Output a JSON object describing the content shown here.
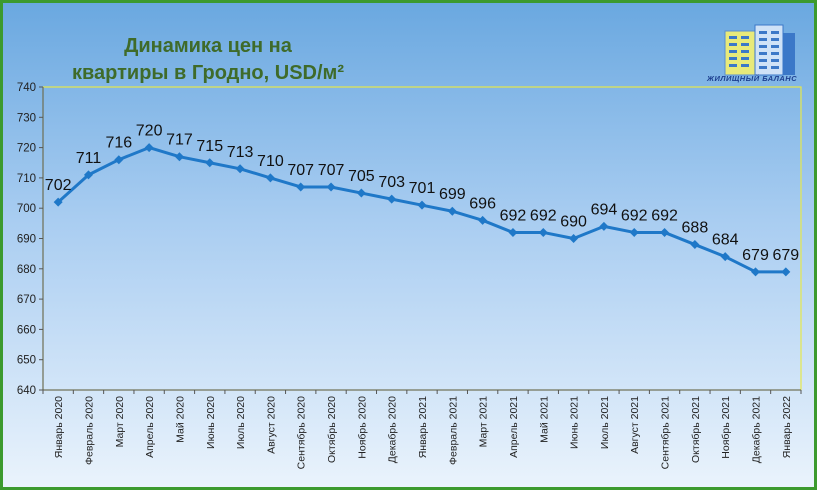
{
  "title_line1": "Динамика цен на",
  "title_line2": "квартиры в Гродно, USD/м²",
  "logo_text": "ЖИЛИЩНЫЙ БАЛАНС",
  "colors": {
    "line": "#1f78c8",
    "title": "#3f6b2a",
    "border": "#3c9a2e",
    "plot_border": "#e6e84a"
  },
  "chart_data": {
    "type": "line",
    "title": "Динамика цен на квартиры в Гродно, USD/м²",
    "xlabel": "",
    "ylabel": "",
    "ylim": [
      640,
      740
    ],
    "ytick_step": 10,
    "grid": false,
    "legend": "none",
    "categories": [
      "Январь 2020",
      "Февраль 2020",
      "Март 2020",
      "Апрель 2020",
      "Май 2020",
      "Июнь 2020",
      "Июль 2020",
      "Август 2020",
      "Сентябрь 2020",
      "Октябрь 2020",
      "Ноябрь 2020",
      "Декабрь 2020",
      "Январь 2021",
      "Февраль 2021",
      "Март 2021",
      "Апрель 2021",
      "Май 2021",
      "Июнь 2021",
      "Июль 2021",
      "Август 2021",
      "Сентябрь 2021",
      "Октябрь 2021",
      "Ноябрь 2021",
      "Декабрь 2021",
      "Январь 2022"
    ],
    "series": [
      {
        "values": [
          702,
          711,
          716,
          720,
          717,
          715,
          713,
          710,
          707,
          707,
          705,
          703,
          701,
          699,
          696,
          692,
          692,
          690,
          694,
          692,
          692,
          688,
          684,
          679,
          679
        ]
      }
    ]
  }
}
